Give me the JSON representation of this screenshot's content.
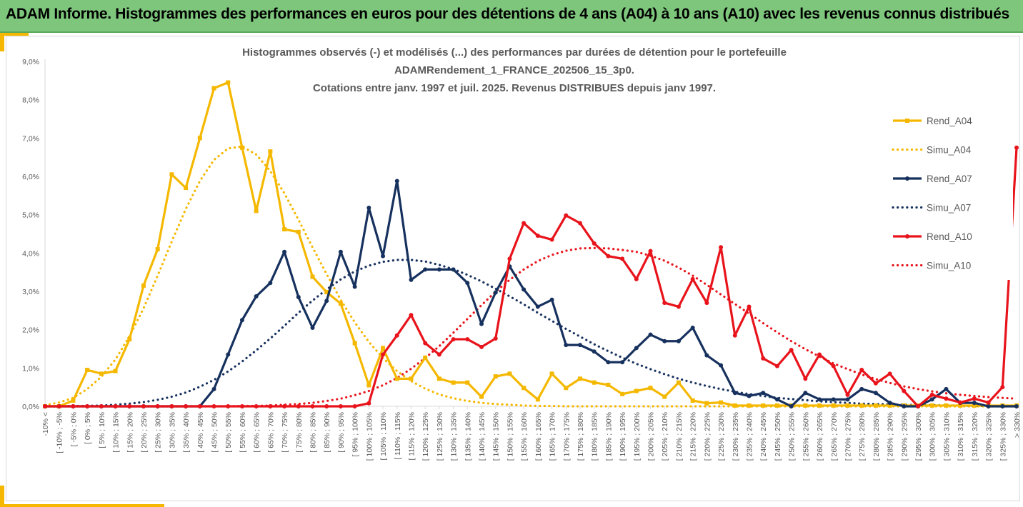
{
  "header": {
    "title": "ADAM Informe. Histogrammes des performances en euros pour des détentions de 4 ans (A04) à 10 ans (A10) avec les revenus connus distribués"
  },
  "chart_data": {
    "type": "line",
    "title_lines": [
      "Histogrammes observés (-) et modélisés (...) des performances par durées de détention pour le portefeuille",
      "ADAMRendement_1_FRANCE_202506_15_3p0.",
      "Cotations entre janv. 1997 et juil. 2025. Revenus DISTRIBUES depuis janv 1997."
    ],
    "ylim": [
      0,
      9
    ],
    "y_ticks": [
      "0,0%",
      "1,0%",
      "2,0%",
      "3,0%",
      "4,0%",
      "5,0%",
      "6,0%",
      "7,0%",
      "8,0%",
      "9,0%"
    ],
    "categories": [
      "-10% <",
      "[ -10% ; -5%",
      "[ -5% ; 0%",
      "[ 0% ; 5%",
      "[ 5% ; 10%",
      "[ 10% ; 15%",
      "[ 15% ; 20%",
      "[ 20% ; 25%",
      "[ 25% ; 30%",
      "[ 30% ; 35%",
      "[ 35% ; 40%",
      "[ 40% ; 45%",
      "[ 45% ; 50%",
      "[ 50% ; 55%",
      "[ 55% ; 60%",
      "[ 60% ; 65%",
      "[ 65% ; 70%",
      "[ 70% ; 75%",
      "[ 75% ; 80%",
      "[ 80% ; 85%",
      "[ 85% ; 90%",
      "[ 90% ; 95%",
      "[ 95% ; 100%",
      "[ 100% ; 105%",
      "[ 105% ; 110%",
      "[ 110% ; 115%",
      "[ 115% ; 120%",
      "[ 120% ; 125%",
      "[ 125% ; 130%",
      "[ 130% ; 135%",
      "[ 135% ; 140%",
      "[ 140% ; 145%",
      "[ 145% ; 150%",
      "[ 150% ; 155%",
      "[ 155% ; 160%",
      "[ 160% ; 165%",
      "[ 165% ; 170%",
      "[ 170% ; 175%",
      "[ 175% ; 180%",
      "[ 180% ; 185%",
      "[ 185% ; 190%",
      "[ 190% ; 195%",
      "[ 195% ; 200%",
      "[ 200% ; 205%",
      "[ 205% ; 210%",
      "[ 210% ; 215%",
      "[ 215% ; 220%",
      "[ 220% ; 225%",
      "[ 225% ; 230%",
      "[ 230% ; 235%",
      "[ 235% ; 240%",
      "[ 240% ; 245%",
      "[ 245% ; 250%",
      "[ 250% ; 255%",
      "[ 255% ; 260%",
      "[ 260% ; 265%",
      "[ 265% ; 270%",
      "[ 270% ; 275%",
      "[ 275% ; 280%",
      "[ 280% ; 285%",
      "[ 285% ; 290%",
      "[ 290% ; 295%",
      "[ 295% ; 300%",
      "[ 300% ; 305%",
      "[ 305% ; 310%",
      "[ 310% ; 315%",
      "[ 315% ; 320%",
      "[ 320% ; 325%",
      "[ 325% ; 330%",
      "> 330%"
    ],
    "series": [
      {
        "name": "Rend_A04",
        "style": "solid",
        "marker": "square",
        "color": "#f5b800",
        "values": [
          0.0,
          0.0,
          0.15,
          0.95,
          0.85,
          0.92,
          1.75,
          3.15,
          4.1,
          6.05,
          5.7,
          7.0,
          8.3,
          8.45,
          6.75,
          5.1,
          6.65,
          4.62,
          4.55,
          3.38,
          2.98,
          2.68,
          1.65,
          0.55,
          1.52,
          0.72,
          0.72,
          1.27,
          0.72,
          0.62,
          0.62,
          0.25,
          0.78,
          0.85,
          0.48,
          0.18,
          0.85,
          0.48,
          0.72,
          0.62,
          0.56,
          0.32,
          0.4,
          0.48,
          0.25,
          0.62,
          0.15,
          0.08,
          0.1,
          0.02,
          0.02,
          0.02,
          0.02,
          0.02,
          0.02,
          0.02,
          0.02,
          0.02,
          0.02,
          0.02,
          0.02,
          0.02,
          0.02,
          0.02,
          0.02,
          0.02,
          0.02,
          0.02,
          0.02,
          0.02
        ]
      },
      {
        "name": "Simu_A04",
        "style": "dotted",
        "color": "#f5b800",
        "values": [
          0.03,
          0.1,
          0.22,
          0.45,
          0.77,
          1.22,
          1.83,
          2.56,
          3.41,
          4.3,
          5.15,
          5.88,
          6.43,
          6.73,
          6.78,
          6.57,
          6.14,
          5.56,
          4.87,
          4.15,
          3.45,
          2.78,
          2.19,
          1.68,
          1.26,
          0.92,
          0.66,
          0.46,
          0.31,
          0.21,
          0.14,
          0.09,
          0.06,
          0.04,
          0.02,
          0.01,
          0.01,
          0.0,
          0.0,
          0.0,
          0.0,
          0.0,
          0.0,
          0.0,
          0.0,
          0.0,
          0.0,
          0.0,
          0.0,
          0.0,
          0.0,
          0.0,
          0.0,
          0.0,
          0.0,
          0.0,
          0.0,
          0.0,
          0.0,
          0.0,
          0.0,
          0.0,
          0.0,
          0.0,
          0.0,
          0.0,
          0.0,
          0.0,
          0.0,
          0.0
        ]
      },
      {
        "name": "Rend_A07",
        "style": "solid",
        "marker": "circle",
        "color": "#17315e",
        "values": [
          0.0,
          0.0,
          0.0,
          0.0,
          0.0,
          0.0,
          0.0,
          0.0,
          0.0,
          0.0,
          0.0,
          0.0,
          0.45,
          1.35,
          2.25,
          2.87,
          3.22,
          4.03,
          2.85,
          2.05,
          2.75,
          4.03,
          3.12,
          5.18,
          3.92,
          5.88,
          3.3,
          3.57,
          3.57,
          3.57,
          3.22,
          2.15,
          2.97,
          3.65,
          3.05,
          2.6,
          2.78,
          1.6,
          1.6,
          1.43,
          1.15,
          1.15,
          1.52,
          1.87,
          1.7,
          1.7,
          2.05,
          1.33,
          1.07,
          0.35,
          0.27,
          0.35,
          0.18,
          0.0,
          0.35,
          0.18,
          0.18,
          0.18,
          0.45,
          0.35,
          0.09,
          0.0,
          0.0,
          0.18,
          0.45,
          0.09,
          0.09,
          0.0,
          0.0,
          0.0
        ]
      },
      {
        "name": "Simu_A07",
        "style": "dotted",
        "color": "#17315e",
        "values": [
          0.0,
          0.0,
          0.01,
          0.01,
          0.02,
          0.04,
          0.07,
          0.11,
          0.17,
          0.25,
          0.36,
          0.51,
          0.69,
          0.91,
          1.17,
          1.46,
          1.77,
          2.1,
          2.44,
          2.76,
          3.05,
          3.31,
          3.52,
          3.67,
          3.77,
          3.82,
          3.82,
          3.78,
          3.69,
          3.58,
          3.43,
          3.26,
          3.07,
          2.87,
          2.66,
          2.44,
          2.23,
          2.02,
          1.82,
          1.62,
          1.44,
          1.27,
          1.11,
          0.97,
          0.84,
          0.72,
          0.62,
          0.53,
          0.45,
          0.38,
          0.32,
          0.27,
          0.22,
          0.19,
          0.16,
          0.13,
          0.11,
          0.09,
          0.07,
          0.06,
          0.05,
          0.04,
          0.03,
          0.03,
          0.02,
          0.02,
          0.01,
          0.01,
          0.01,
          0.01
        ]
      },
      {
        "name": "Rend_A10",
        "style": "solid",
        "marker": "circle",
        "color": "#e8131b",
        "values": [
          0.0,
          0.0,
          0.0,
          0.0,
          0.0,
          0.0,
          0.0,
          0.0,
          0.0,
          0.0,
          0.0,
          0.0,
          0.0,
          0.0,
          0.0,
          0.0,
          0.0,
          0.0,
          0.0,
          0.0,
          0.0,
          0.0,
          0.0,
          0.08,
          1.35,
          1.85,
          2.38,
          1.65,
          1.35,
          1.75,
          1.75,
          1.55,
          1.77,
          3.85,
          4.78,
          4.45,
          4.35,
          4.98,
          4.78,
          4.25,
          3.92,
          3.85,
          3.32,
          4.05,
          2.7,
          2.6,
          3.32,
          2.7,
          4.15,
          1.85,
          2.6,
          1.25,
          1.05,
          1.47,
          0.72,
          1.35,
          1.05,
          0.3,
          0.95,
          0.6,
          0.85,
          0.4,
          0.0,
          0.3,
          0.2,
          0.1,
          0.2,
          0.1,
          0.5,
          6.75
        ]
      },
      {
        "name": "Simu_A10",
        "style": "dotted",
        "color": "#e8131b",
        "values": [
          0.0,
          0.0,
          0.0,
          0.0,
          0.0,
          0.0,
          0.0,
          0.0,
          0.0,
          0.0,
          0.0,
          0.0,
          0.0,
          0.0,
          0.01,
          0.01,
          0.02,
          0.04,
          0.06,
          0.09,
          0.14,
          0.2,
          0.29,
          0.4,
          0.55,
          0.74,
          0.98,
          1.26,
          1.57,
          1.92,
          2.28,
          2.64,
          2.99,
          3.3,
          3.57,
          3.79,
          3.95,
          4.06,
          4.12,
          4.13,
          4.12,
          4.08,
          4.03,
          3.93,
          3.8,
          3.62,
          3.41,
          3.17,
          2.92,
          2.67,
          2.42,
          2.17,
          1.93,
          1.7,
          1.49,
          1.3,
          1.12,
          0.97,
          0.83,
          0.71,
          0.61,
          0.52,
          0.45,
          0.39,
          0.34,
          0.3,
          0.27,
          0.24,
          0.22,
          0.2
        ]
      }
    ],
    "legend_position": "right",
    "grid": false
  }
}
